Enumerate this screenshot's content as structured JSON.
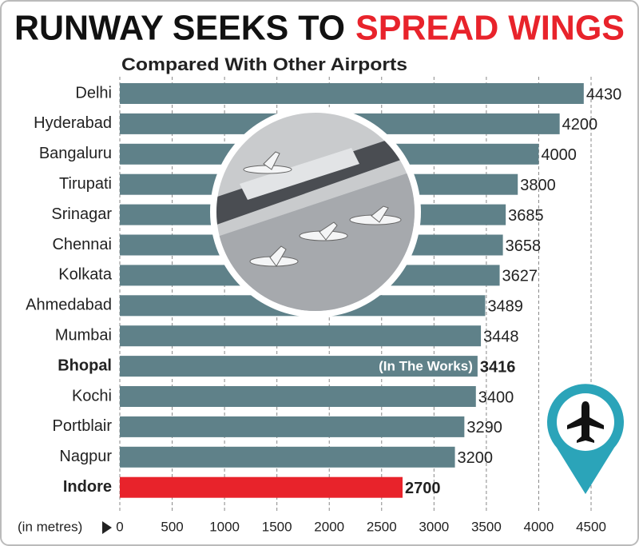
{
  "chart_data": {
    "type": "bar",
    "orientation": "horizontal",
    "title": "RUNWAY SEEKS TO",
    "title_highlight": "SPREAD WINGS",
    "subtitle": "Compared With Other Airports",
    "x_label": "(in metres)",
    "categories": [
      "Delhi",
      "Hyderabad",
      "Bangaluru",
      "Tirupati",
      "Srinagar",
      "Chennai",
      "Kolkata",
      "Ahmedabad",
      "Mumbai",
      "Bhopal",
      "Kochi",
      "Portblair",
      "Nagpur",
      "Indore"
    ],
    "values": [
      4430,
      4200,
      4000,
      3800,
      3685,
      3658,
      3627,
      3489,
      3448,
      3416,
      3400,
      3290,
      3200,
      2700
    ],
    "colors": [
      "#5f8189",
      "#5f8189",
      "#5f8189",
      "#5f8189",
      "#5f8189",
      "#5f8189",
      "#5f8189",
      "#5f8189",
      "#5f8189",
      "#5f8189",
      "#5f8189",
      "#5f8189",
      "#5f8189",
      "#e8232b"
    ],
    "bold_indices": [
      9,
      13
    ],
    "annotation": {
      "text": "(In The Works)",
      "index": 9
    },
    "xlim": [
      0,
      4500
    ],
    "xticks": [
      0,
      500,
      1000,
      1500,
      2000,
      2500,
      3000,
      3500,
      4000,
      4500
    ],
    "grid": true
  }
}
